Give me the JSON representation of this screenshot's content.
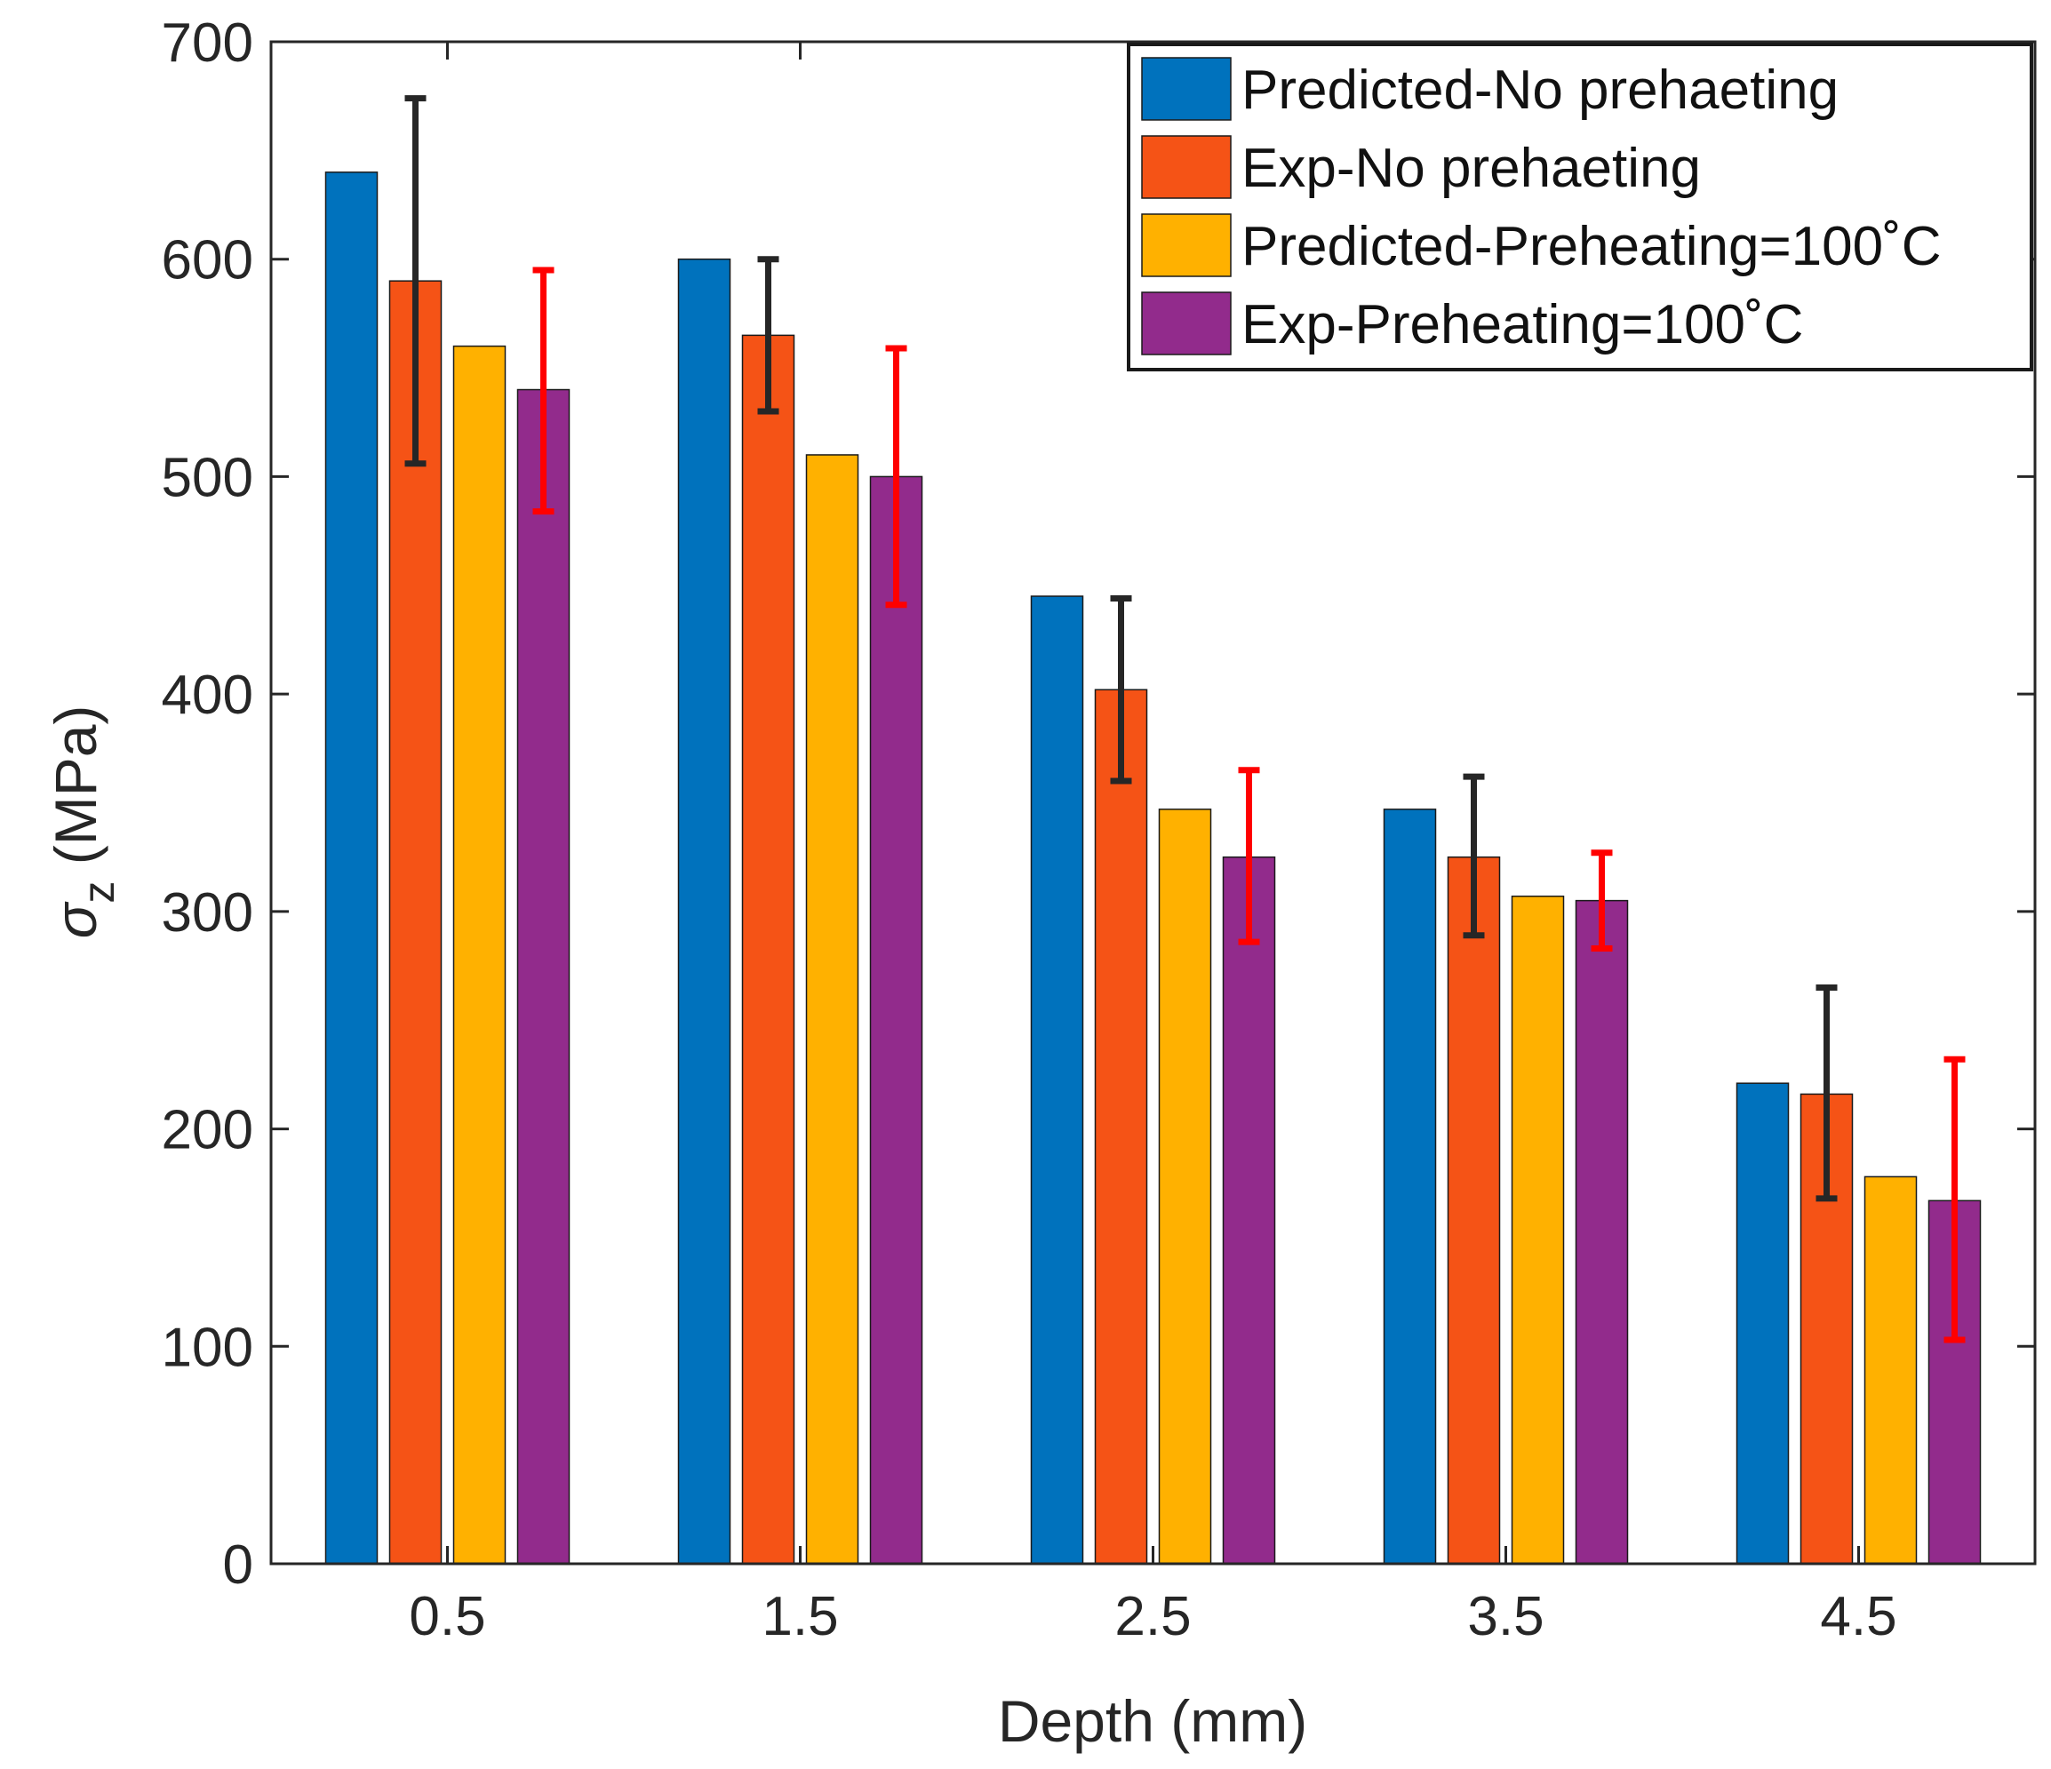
{
  "chart_data": {
    "type": "bar",
    "title": "",
    "xlabel": "Depth (mm)",
    "ylabel_symbol": "σ",
    "ylabel_subscript": "z",
    "ylabel_unit": " (MPa)",
    "categories": [
      "0.5",
      "1.5",
      "2.5",
      "3.5",
      "4.5"
    ],
    "ylim": [
      0,
      700
    ],
    "yticks": [
      0,
      100,
      200,
      300,
      400,
      500,
      600,
      700
    ],
    "ytick_labels": [
      "0",
      "100",
      "200",
      "300",
      "400",
      "500",
      "600",
      "700"
    ],
    "grid": false,
    "legend_position": "top-right",
    "series": [
      {
        "name": "Predicted-No prehaeting",
        "color": "#0072BD",
        "values": [
          640,
          600,
          445,
          347,
          221
        ]
      },
      {
        "name": "Exp-No prehaeting",
        "color": "#F55316",
        "values": [
          590,
          565,
          402,
          325,
          216
        ],
        "error_low": [
          506,
          530,
          360,
          289,
          168
        ],
        "error_high": [
          674,
          600,
          444,
          362,
          265
        ],
        "error_color": "#262626"
      },
      {
        "name": "Predicted-Preheating=100˚C",
        "color": "#FFB100",
        "values": [
          560,
          510,
          347,
          307,
          178
        ]
      },
      {
        "name": "Exp-Preheating=100˚C",
        "color": "#922B8C",
        "values": [
          540,
          500,
          325,
          305,
          167
        ],
        "error_low": [
          484,
          441,
          286,
          283,
          103
        ],
        "error_high": [
          595,
          559,
          365,
          327,
          232
        ],
        "error_color": "#FF0000"
      }
    ]
  }
}
